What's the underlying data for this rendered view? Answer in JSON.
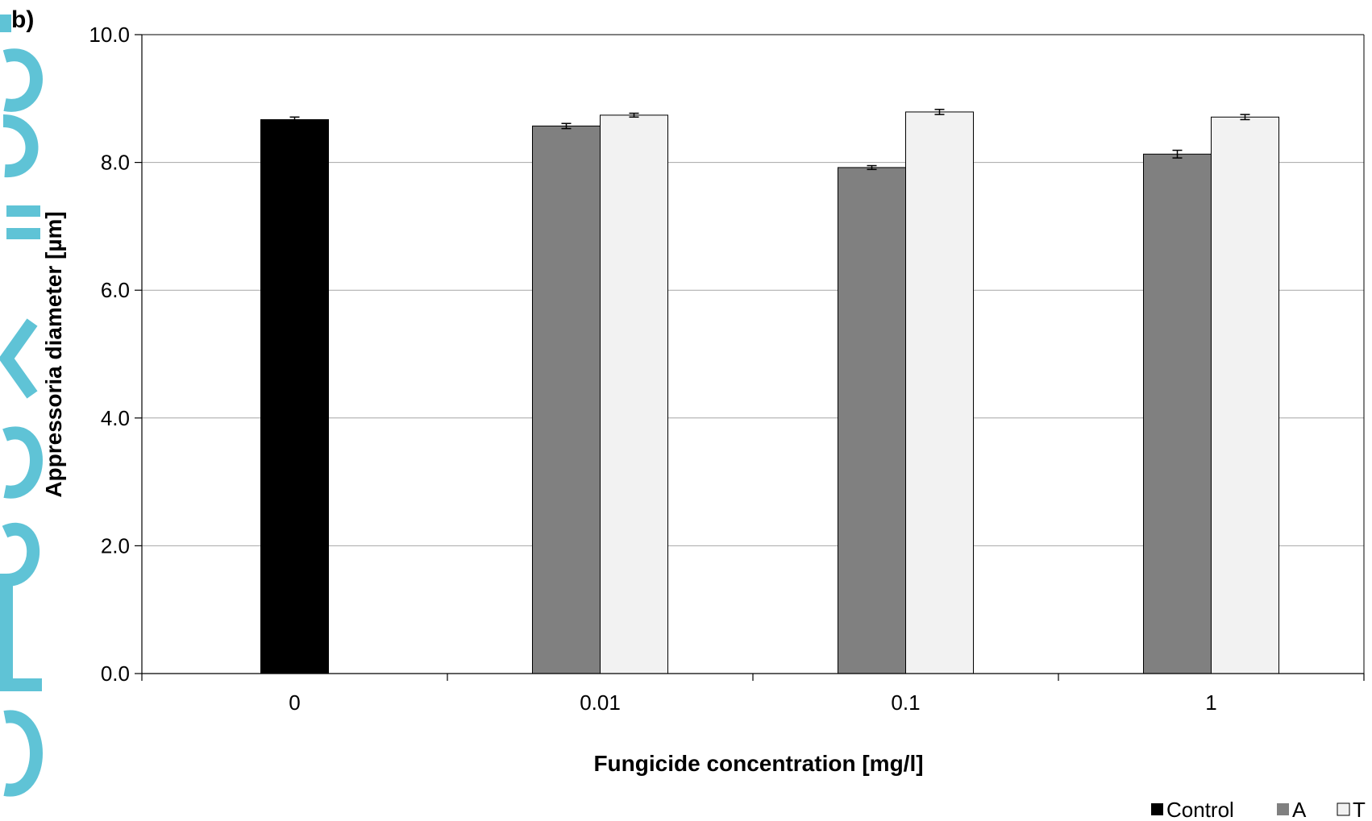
{
  "panel_label": "b)",
  "colors": {
    "Control": "#000000",
    "A": "#808080",
    "T": "#f2f2f2",
    "watermark": "#5fc3d6",
    "grid": "#a6a6a6"
  },
  "chart_data": {
    "type": "bar",
    "title": "",
    "xlabel": "Fungicide concentration [mg/l]",
    "ylabel": "Appressoria diameter [µm]",
    "categories": [
      "0",
      "0.01",
      "0.1",
      "1"
    ],
    "ylim": [
      0,
      10
    ],
    "yticks": [
      "0.0",
      "2.0",
      "4.0",
      "6.0",
      "8.0",
      "10.0"
    ],
    "grid": "horizontal",
    "legend_position": "bottom-right",
    "series": [
      {
        "name": "Control",
        "values": [
          8.67,
          null,
          null,
          null
        ],
        "errors": [
          0.04,
          null,
          null,
          null
        ]
      },
      {
        "name": "A",
        "values": [
          null,
          8.57,
          7.92,
          8.13
        ],
        "errors": [
          null,
          0.04,
          0.03,
          0.06
        ]
      },
      {
        "name": "T",
        "values": [
          null,
          8.74,
          8.79,
          8.71
        ],
        "errors": [
          null,
          0.03,
          0.04,
          0.04
        ]
      }
    ]
  }
}
